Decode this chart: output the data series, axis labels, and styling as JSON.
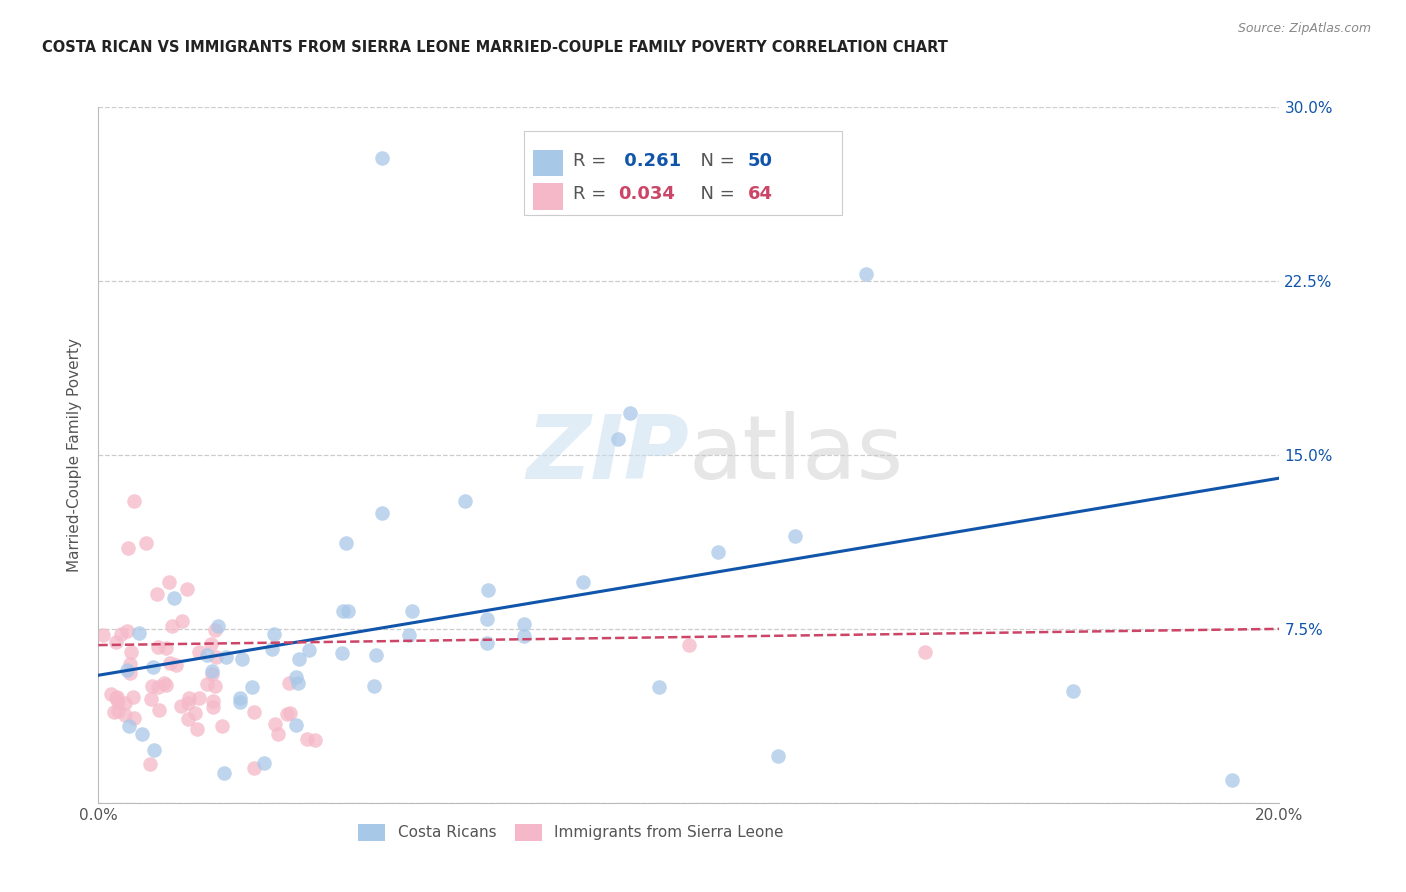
{
  "title": "COSTA RICAN VS IMMIGRANTS FROM SIERRA LEONE MARRIED-COUPLE FAMILY POVERTY CORRELATION CHART",
  "source": "Source: ZipAtlas.com",
  "ylabel": "Married-Couple Family Poverty",
  "xlim": [
    0.0,
    0.2
  ],
  "ylim": [
    0.0,
    0.3
  ],
  "yticks": [
    0.0,
    0.075,
    0.15,
    0.225,
    0.3
  ],
  "yticklabels": [
    "",
    "7.5%",
    "15.0%",
    "22.5%",
    "30.0%"
  ],
  "background_color": "#ffffff",
  "grid_color": "#cccccc",
  "blue_color": "#a8c8e8",
  "pink_color": "#f5b8c8",
  "blue_line_color": "#1155aa",
  "pink_line_color": "#cc4466",
  "legend_R1": "R =  0.261",
  "legend_N1": "N = 50",
  "legend_R2": "R = 0.034",
  "legend_N2": "N = 64",
  "cr_line_x0": 0.0,
  "cr_line_y0": 0.055,
  "cr_line_x1": 0.2,
  "cr_line_y1": 0.14,
  "sl_line_x0": 0.0,
  "sl_line_y0": 0.068,
  "sl_line_x1": 0.2,
  "sl_line_y1": 0.075
}
